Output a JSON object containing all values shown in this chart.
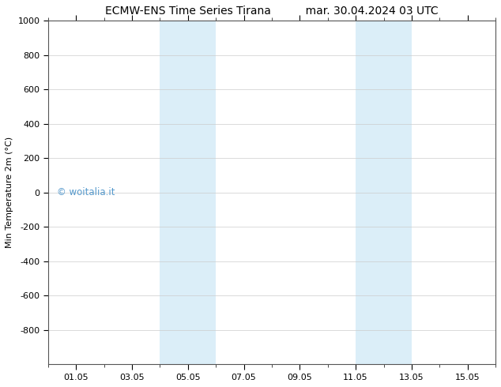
{
  "title_left": "ECMW-ENS Time Series Tirana",
  "title_right": "mar. 30.04.2024 03 UTC",
  "ylabel": "Min Temperature 2m (°C)",
  "ylim": [
    -1000,
    1000
  ],
  "yticks": [
    -800,
    -600,
    -400,
    -200,
    0,
    200,
    400,
    600,
    800,
    1000
  ],
  "xlim": [
    0,
    16
  ],
  "xtick_labels": [
    "01.05",
    "03.05",
    "05.05",
    "07.05",
    "09.05",
    "11.05",
    "13.05",
    "15.05"
  ],
  "xtick_positions": [
    1,
    3,
    5,
    7,
    9,
    11,
    13,
    15
  ],
  "shaded_regions": [
    {
      "x_start": 4.0,
      "x_end": 5.0
    },
    {
      "x_start": 5.0,
      "x_end": 6.0
    },
    {
      "x_start": 11.0,
      "x_end": 12.0
    },
    {
      "x_start": 12.0,
      "x_end": 13.0
    }
  ],
  "shaded_color": "#dbeef8",
  "watermark_text": "© woitalia.it",
  "watermark_color": "#5599cc",
  "background_color": "#ffffff",
  "grid_color": "#cccccc",
  "title_fontsize": 10,
  "axis_fontsize": 8,
  "tick_fontsize": 8
}
